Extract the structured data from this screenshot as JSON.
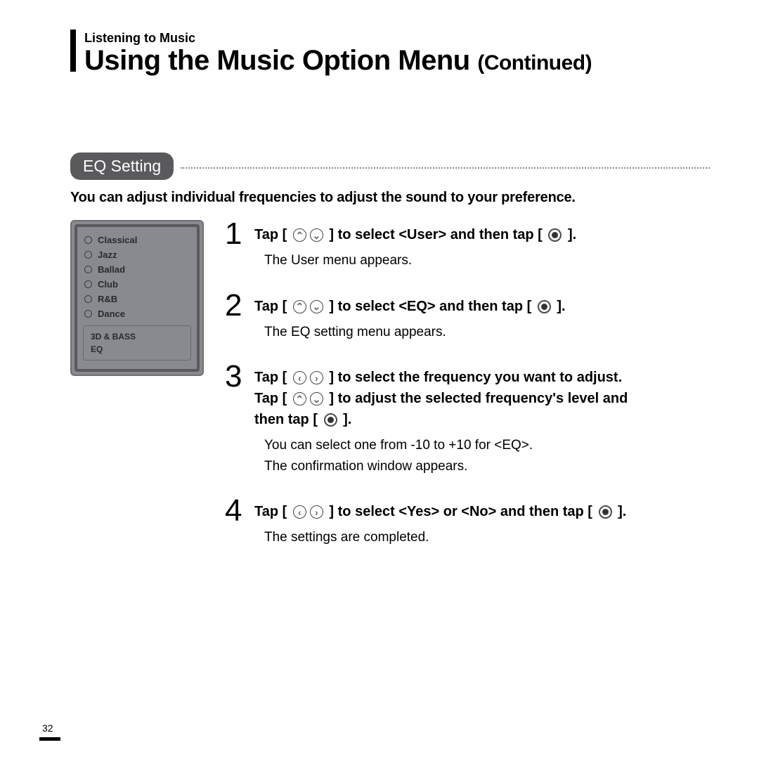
{
  "breadcrumb": "Listening to Music",
  "title_main": "Using the Music Option Menu ",
  "title_sub": "(Continued)",
  "section_label": "EQ Setting",
  "section_intro": "You can adjust individual frequencies to adjust the sound to your preference.",
  "device_menu": [
    "Classical",
    "Jazz",
    "Ballad",
    "Club",
    "R&B",
    "Dance"
  ],
  "device_extra": [
    "3D & BASS",
    "EQ"
  ],
  "steps": [
    {
      "num": "1",
      "title_a": "Tap [ ",
      "title_b": " ] to select <User> and then tap [ ",
      "title_c": " ].",
      "icons1": "updown",
      "icons2": "enter",
      "desc": [
        "The User menu appears."
      ]
    },
    {
      "num": "2",
      "title_a": "Tap [ ",
      "title_b": " ] to select <EQ> and then tap [ ",
      "title_c": " ].",
      "icons1": "updown",
      "icons2": "enter",
      "desc": [
        "The EQ setting menu appears."
      ]
    },
    {
      "num": "3",
      "lines": [
        {
          "a": "Tap [ ",
          "b": " ] to select the frequency you want to adjust.",
          "icons": "leftright"
        },
        {
          "a": "Tap [ ",
          "b": " ] to adjust the selected frequency's level and",
          "icons": "updown"
        },
        {
          "a": "then tap [ ",
          "b": " ].",
          "icons": "enter"
        }
      ],
      "desc": [
        "You can select one from -10 to +10 for <EQ>.",
        "The confirmation window appears."
      ]
    },
    {
      "num": "4",
      "title_a": "Tap [ ",
      "title_b": " ] to select <Yes> or <No> and then tap [ ",
      "title_c": " ].",
      "icons1": "leftright",
      "icons2": "enter",
      "desc": [
        "The settings are completed."
      ]
    }
  ],
  "page_number": "32"
}
